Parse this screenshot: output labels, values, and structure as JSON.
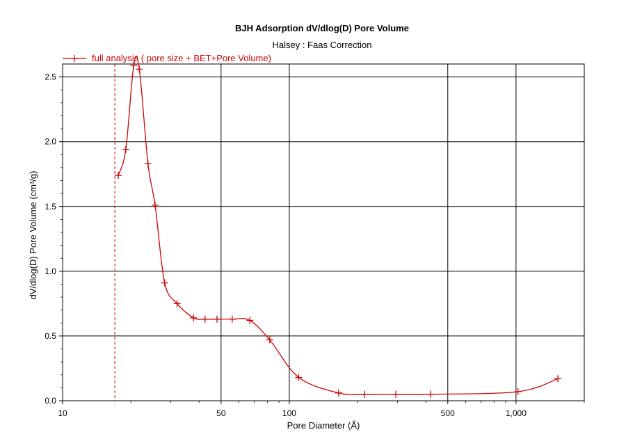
{
  "chart_data": {
    "type": "line",
    "title": "BJH Adsorption dV/dlog(D) Pore Volume",
    "subtitle": "Halsey : Faas Correction",
    "xlabel": "Pore Diameter (Å)",
    "ylabel": "dV/dlog(D) Pore Volume (cm³/g)",
    "x_scale": "log",
    "xlim": [
      10,
      2000
    ],
    "ylim": [
      0,
      2.6
    ],
    "x_ticks": [
      10,
      50,
      100,
      500,
      1000
    ],
    "x_tick_labels": [
      "10",
      "50",
      "100",
      "500",
      "1,000"
    ],
    "y_ticks": [
      0.0,
      0.5,
      1.0,
      1.5,
      2.0,
      2.5
    ],
    "y_tick_labels": [
      "0.0",
      "0.5",
      "1.0",
      "1.5",
      "2.0",
      "2.5"
    ],
    "grid": true,
    "legend_position": "top-left",
    "reference_line_x": 17,
    "series": [
      {
        "name": "full analysis ( pore size + BET+Pore Volume)",
        "color": "#cc0000",
        "marker": "plus",
        "x": [
          17.6,
          19.0,
          20.6,
          21.8,
          23.8,
          25.6,
          28.2,
          32.0,
          37.8,
          42.5,
          48.0,
          56.0,
          67.0,
          82.0,
          110,
          165,
          215,
          295,
          420,
          1020,
          1530
        ],
        "y": [
          1.74,
          1.94,
          2.59,
          2.56,
          1.83,
          1.51,
          0.91,
          0.75,
          0.64,
          0.63,
          0.63,
          0.63,
          0.62,
          0.47,
          0.18,
          0.06,
          0.05,
          0.05,
          0.05,
          0.07,
          0.17
        ]
      }
    ]
  }
}
